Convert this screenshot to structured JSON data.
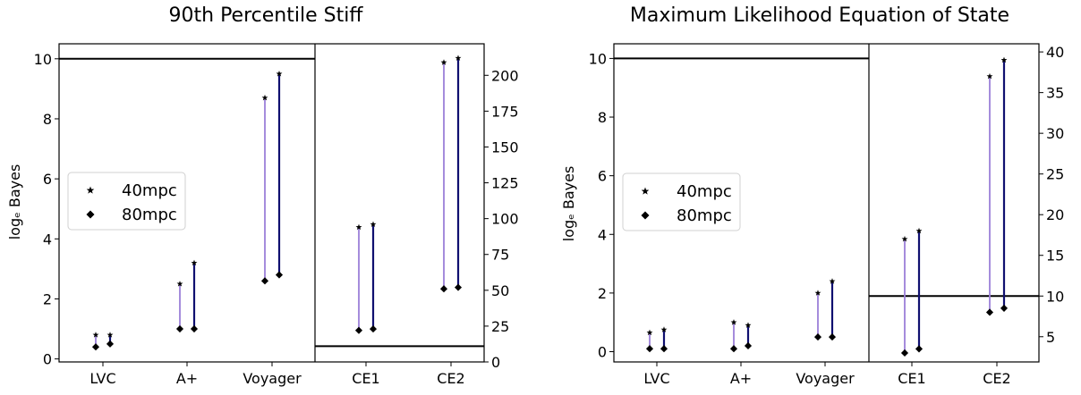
{
  "colors": {
    "light_stem": "#9b7fd9",
    "dark_stem": "#101070",
    "marker": "#000000",
    "axis": "#000000"
  },
  "legend": {
    "entry1": "40mpc",
    "entry2": "80mpc",
    "marker1": "star",
    "marker2": "diamond",
    "placement": "center-left"
  },
  "chart_data": [
    {
      "type": "scatter",
      "title": "90th Percentile Stiff",
      "ylabel": "logₑ Bayes",
      "left": {
        "categories": [
          "LVC",
          "A+",
          "Voyager"
        ],
        "ylim": [
          -0.1,
          10.5
        ],
        "yticks": [
          0,
          2,
          4,
          6,
          8,
          10
        ],
        "ytick_labels": [
          "0",
          "2",
          "4",
          "6",
          "8",
          "10"
        ],
        "hline": 10,
        "series": [
          {
            "name": "40mpc",
            "stem": "light",
            "values": [
              0.8,
              2.5,
              8.7
            ],
            "base": [
              0.4,
              1.0,
              2.6
            ]
          },
          {
            "name": "80mpc",
            "stem": "dark",
            "values": [
              0.8,
              3.2,
              9.5
            ],
            "base": [
              0.5,
              1.0,
              2.8
            ]
          }
        ]
      },
      "right": {
        "categories": [
          "CE1",
          "CE2"
        ],
        "ylim": [
          0,
          222
        ],
        "yticks": [
          0,
          25,
          50,
          75,
          100,
          125,
          150,
          175,
          200
        ],
        "ytick_labels": [
          "0",
          "25",
          "50",
          "75",
          "100",
          "125",
          "150",
          "175",
          "200"
        ],
        "hline": 11,
        "series": [
          {
            "name": "40mpc",
            "stem": "light",
            "values": [
              94,
              209
            ],
            "base": [
              22,
              51
            ]
          },
          {
            "name": "80mpc",
            "stem": "dark",
            "values": [
              96,
              212
            ],
            "base": [
              23,
              52
            ]
          }
        ]
      }
    },
    {
      "type": "scatter",
      "title": "Maximum Likelihood Equation of State",
      "ylabel": "logₑ Bayes",
      "left": {
        "categories": [
          "LVC",
          "A+",
          "Voyager"
        ],
        "ylim": [
          -0.35,
          10.5
        ],
        "yticks": [
          0,
          2,
          4,
          6,
          8,
          10
        ],
        "ytick_labels": [
          "0",
          "2",
          "4",
          "6",
          "8",
          "10"
        ],
        "hline": 10,
        "series": [
          {
            "name": "40mpc",
            "stem": "light",
            "values": [
              0.65,
              1.0,
              2.0
            ],
            "base": [
              0.1,
              0.1,
              0.5
            ]
          },
          {
            "name": "80mpc",
            "stem": "dark",
            "values": [
              0.75,
              0.9,
              2.4
            ],
            "base": [
              0.1,
              0.2,
              0.5
            ]
          }
        ]
      },
      "right": {
        "categories": [
          "CE1",
          "CE2"
        ],
        "ylim": [
          1.9,
          41
        ],
        "yticks": [
          5,
          10,
          15,
          20,
          25,
          30,
          35,
          40
        ],
        "ytick_labels": [
          "5",
          "10",
          "15",
          "20",
          "25",
          "30",
          "35",
          "40"
        ],
        "hline": 10,
        "series": [
          {
            "name": "40mpc",
            "stem": "light",
            "values": [
              17,
              37
            ],
            "base": [
              3,
              8
            ]
          },
          {
            "name": "80mpc",
            "stem": "dark",
            "values": [
              18,
              39
            ],
            "base": [
              3.5,
              8.5
            ]
          }
        ]
      }
    }
  ]
}
